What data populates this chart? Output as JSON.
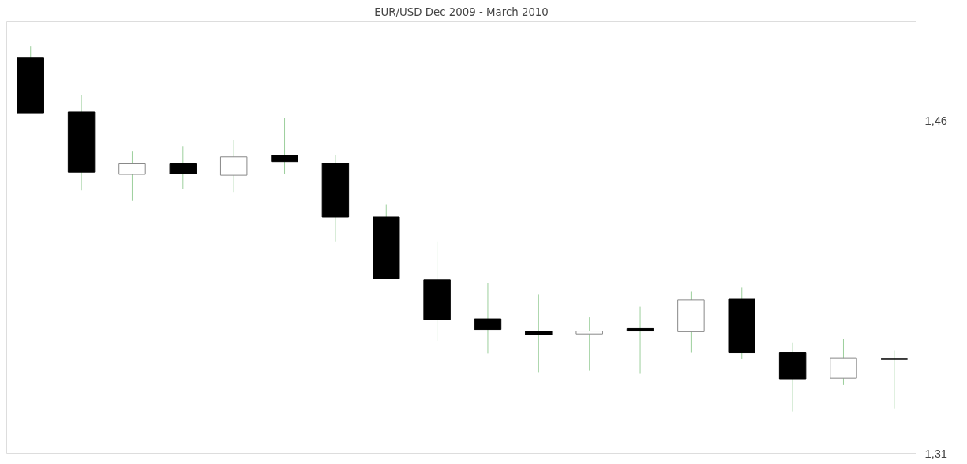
{
  "chart_data": {
    "type": "candlestick",
    "title": "EUR/USD Dec 2009 - March 2010",
    "categories": [
      null,
      null,
      null,
      null,
      null,
      null,
      null,
      null,
      null,
      null,
      null,
      null,
      null,
      null,
      null,
      null,
      null,
      null
    ],
    "ohlc": [
      [
        1.4884,
        1.4936,
        1.4634,
        1.4634
      ],
      [
        1.4638,
        1.4716,
        1.4285,
        1.4367
      ],
      [
        1.4357,
        1.4463,
        1.4237,
        1.4405
      ],
      [
        1.4405,
        1.4484,
        1.4292,
        1.436
      ],
      [
        1.4353,
        1.4511,
        1.4278,
        1.4436
      ],
      [
        1.4442,
        1.461,
        1.436,
        1.4415
      ],
      [
        1.4408,
        1.4446,
        1.4052,
        1.4165
      ],
      [
        1.4165,
        1.422,
        1.3888,
        1.3888
      ],
      [
        1.3881,
        1.4052,
        1.3607,
        1.3703
      ],
      [
        1.3706,
        1.3867,
        1.3552,
        1.3658
      ],
      [
        1.3651,
        1.3815,
        1.3463,
        1.3634
      ],
      [
        1.3638,
        1.3713,
        1.3473,
        1.3651
      ],
      [
        1.3662,
        1.3761,
        1.3459,
        1.3651
      ],
      [
        1.3648,
        1.3829,
        1.3555,
        1.3792
      ],
      [
        1.3795,
        1.3847,
        1.3525,
        1.3555
      ],
      [
        1.3555,
        1.3597,
        1.3288,
        1.3436
      ],
      [
        1.3439,
        1.3617,
        1.3408,
        1.3528
      ],
      [
        1.3525,
        1.3562,
        1.3302,
        1.3525
      ]
    ],
    "ylim": [
      1.31,
      1.5045
    ],
    "yticks": [
      {
        "value": 1.46,
        "label": "1,46"
      },
      {
        "value": 1.31,
        "label": "1,31"
      }
    ]
  }
}
